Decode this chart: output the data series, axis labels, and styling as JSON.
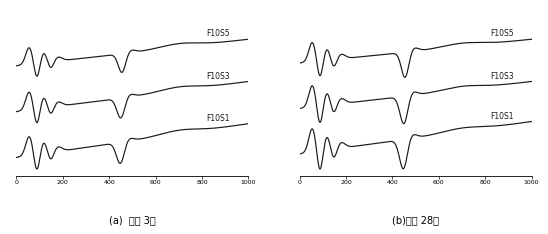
{
  "title_a": "(a)  재령 3일",
  "title_b": "(b)재령 28일",
  "labels": [
    "F10S5",
    "F10S3",
    "F10S1"
  ],
  "xlim": [
    0,
    1000
  ],
  "xticks": [
    0,
    200,
    400,
    600,
    800,
    1000
  ],
  "line_color": "#1a1a1a",
  "figsize": [
    5.48,
    2.34
  ],
  "dpi": 100,
  "offsets_a": [
    0.38,
    0.0,
    -0.38
  ],
  "offsets_b": [
    0.42,
    0.0,
    -0.42
  ]
}
